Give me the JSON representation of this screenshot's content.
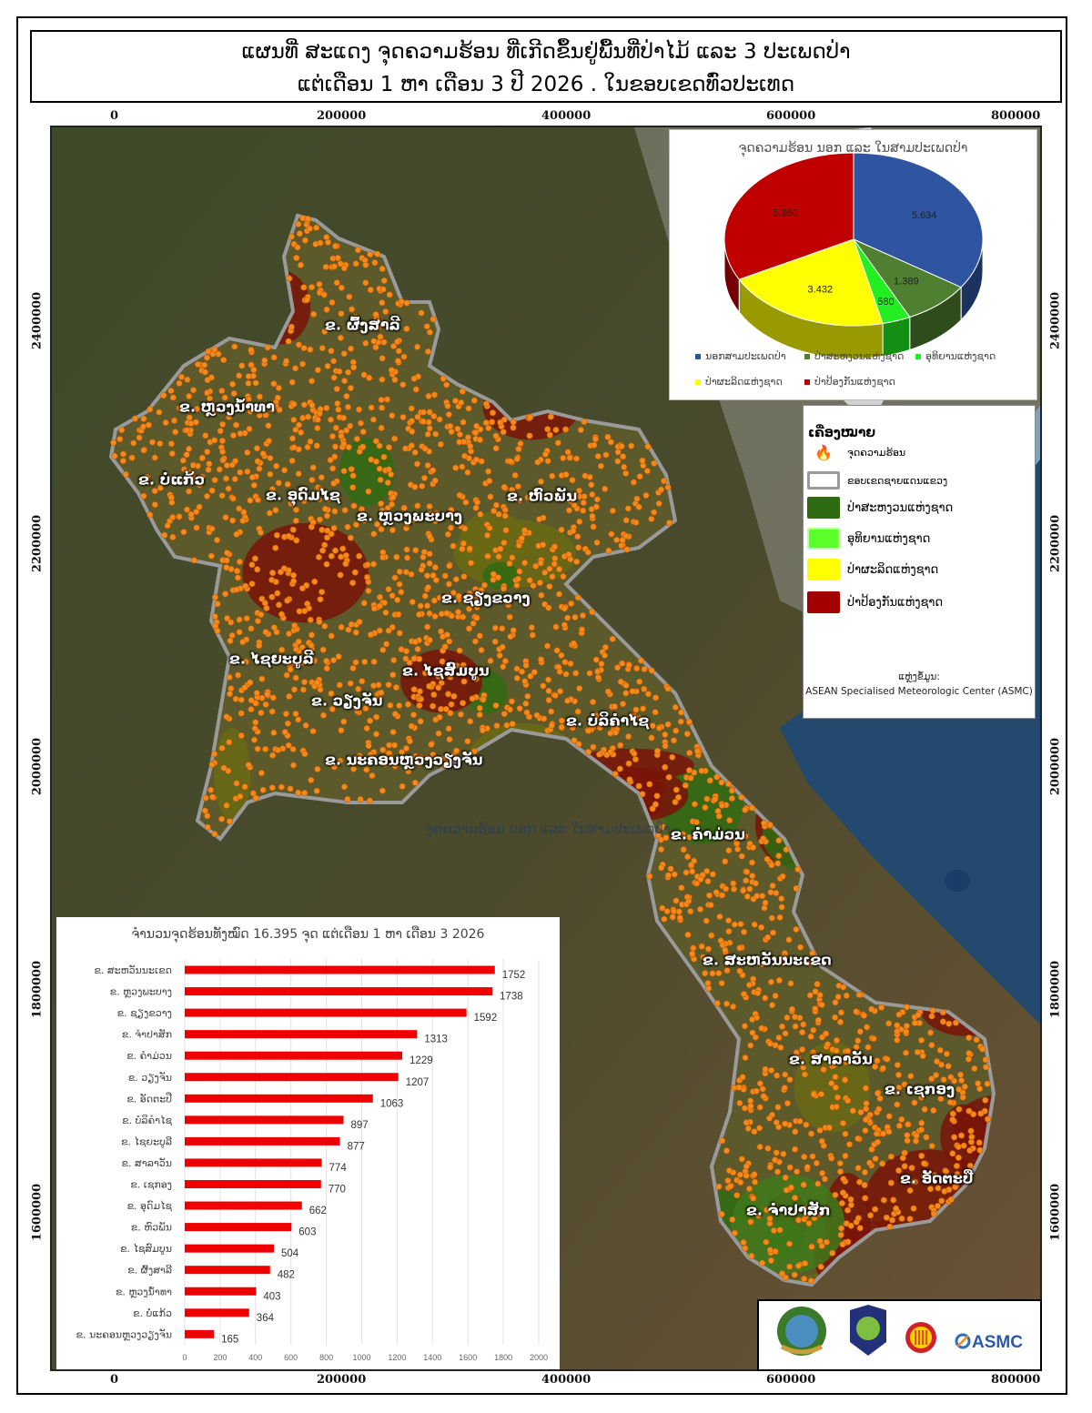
{
  "title": {
    "line1": "ແຜນທີ່ ສະແດງ ຈຸດຄວາມຮ້ອນ ທີ່ເກີດຂຶ້ນຢູ່ພື້ນທີ່ປ່າໄມ້ ແລະ 3 ປະເພດປ່າ",
    "line2": "ແຕ່ເດືອນ 1 ຫາ ເດືອນ 3 ປີ 2026 . ໃນຂອບເຂດທົ່ວປະເທດ"
  },
  "axes": {
    "easting_ticks": [
      "0",
      "200000",
      "400000",
      "600000",
      "800000"
    ],
    "northing_ticks": [
      "2400000",
      "2200000",
      "2000000",
      "1800000",
      "1600000"
    ]
  },
  "map": {
    "colors": {
      "hotspot": "#f58a1c",
      "boundary": "#9a9a9a",
      "conservation": "#2f6b12",
      "nbca": "#5bff2a",
      "production": "#ffff00",
      "protection": "#a40000"
    },
    "province_labels": [
      "ຂ. ຜົ້ງສາລີ",
      "ຂ. ຫຼວງນ້ຳທາ",
      "ຂ. ບໍ່ແກ້ວ",
      "ຂ. ອຸດົມໄຊ",
      "ຂ. ຫຼວງພະບາງ",
      "ຂ. ຫົວພັນ",
      "ຂ. ຊຽງຂວາງ",
      "ຂ. ໄຊຍະບູລີ",
      "ຂ. ໄຊສົມບູນ",
      "ຂ. ວຽງຈັນ",
      "ຂ. ບໍລິຄຳໄຊ",
      "ຂ. ນະຄອນຫຼວງວຽງຈັນ",
      "ຂ. ຄຳມ່ວນ",
      "ຂ. ສະຫວັນນະເຂດ",
      "ຂ. ສາລາວັນ",
      "ຂ. ເຊກອງ",
      "ຂ. ອັດຕະປື",
      "ຂ. ຈຳປາສັກ"
    ],
    "overlay_text": "ຈຸດຄວາມຮ້ອນ ນອກ ແລະ ໃນສາມປະເພດປ່າ"
  },
  "legend": {
    "title": "ເຄື່ອງໝາຍ",
    "items": [
      {
        "label": "ຈຸດຄວາມຮ້ອນ",
        "icon": "fire-icon"
      },
      {
        "label": "ຂອບເຂດຊາຍແດນແຂວງ",
        "color": "#9a9a9a"
      },
      {
        "label": "ປ່າສະຫງວນແຫ່ງຊາດ",
        "color": "#2f6b12"
      },
      {
        "label": "ອຸທິຍານແຫ່ງຊາດ",
        "color": "#5bff2a"
      },
      {
        "label": "ປ່າຜະລິດແຫ່ງຊາດ",
        "color": "#ffff00"
      },
      {
        "label": "ປ່າປ້ອງກັນແຫ່ງຊາດ",
        "color": "#a40000"
      }
    ],
    "source_label": "ແຫຼ່ງຂໍ້ມູນ:",
    "source": "ASEAN Specialised Meteorologic Center (ASMC)"
  },
  "logos": {
    "asmc_text": "ASMC"
  },
  "chart_data": [
    {
      "type": "pie",
      "title": "ຈຸດຄວາມຮ້ອນ ນອກ ແລະ ໃນສາມປະເພດປ່າ",
      "style": "3d",
      "legend_placement": "bottom",
      "slices": [
        {
          "name": "ນອກສາມປະເພດປ່າ",
          "value": 5634,
          "label": "5.634",
          "color": "#2f55a0"
        },
        {
          "name": "ປ່າສະຫງວນແຫ່ງຊາດ",
          "value": 1389,
          "label": "1.389",
          "color": "#4f7f30"
        },
        {
          "name": "ອຸທິຍານແຫ່ງຊາດ",
          "value": 580,
          "label": "580",
          "color": "#22ee22"
        },
        {
          "name": "ປ່າຜະລິດແຫ່ງຊາດ",
          "value": 3432,
          "label": "3.432",
          "color": "#ffff00"
        },
        {
          "name": "ປ່າປ້ອງກັນແຫ່ງຊາດ",
          "value": 5360,
          "label": "5.360",
          "color": "#c00000"
        }
      ]
    },
    {
      "type": "bar",
      "orientation": "horizontal",
      "title": "ຈຳນວນຈຸດຮ້ອນທັງໝົດ 16.395 ຈຸດ ແຕ່ເດືອນ 1 ຫາ ເດືອນ  3 2026",
      "bar_color": "#ee0000",
      "grid": true,
      "xlim": [
        0,
        2000
      ],
      "xticks": [
        "0",
        "200",
        "400",
        "600",
        "800",
        "1000",
        "1200",
        "1400",
        "1600",
        "1800",
        "2000"
      ],
      "categories": [
        "ຂ. ສະຫວັນນະເຂດ",
        "ຂ. ຫຼວງພະບາງ",
        "ຂ. ຊຽງຂວາງ",
        "ຂ. ຈຳປາສັກ",
        "ຂ. ຄຳມ່ວນ",
        "ຂ. ວຽງຈັນ",
        "ຂ. ອັດຕະປື",
        "ຂ. ບໍລິຄຳໄຊ",
        "ຂ. ໄຊຍະບູລີ",
        "ຂ. ສາລາວັນ",
        "ຂ. ເຊກອງ",
        "ຂ. ອຸດົມໄຊ",
        "ຂ. ຫົວພັນ",
        "ຂ. ໄຊສົມບູນ",
        "ຂ. ຜົ້ງສາລີ",
        "ຂ. ຫຼວງນ້ຳທາ",
        "ຂ. ບໍ່ແກ້ວ",
        "ຂ. ນະຄອນຫຼວງວຽງຈັນ"
      ],
      "values": [
        1752,
        1738,
        1592,
        1313,
        1229,
        1207,
        1063,
        897,
        877,
        774,
        770,
        662,
        603,
        504,
        482,
        403,
        364,
        165
      ]
    }
  ]
}
